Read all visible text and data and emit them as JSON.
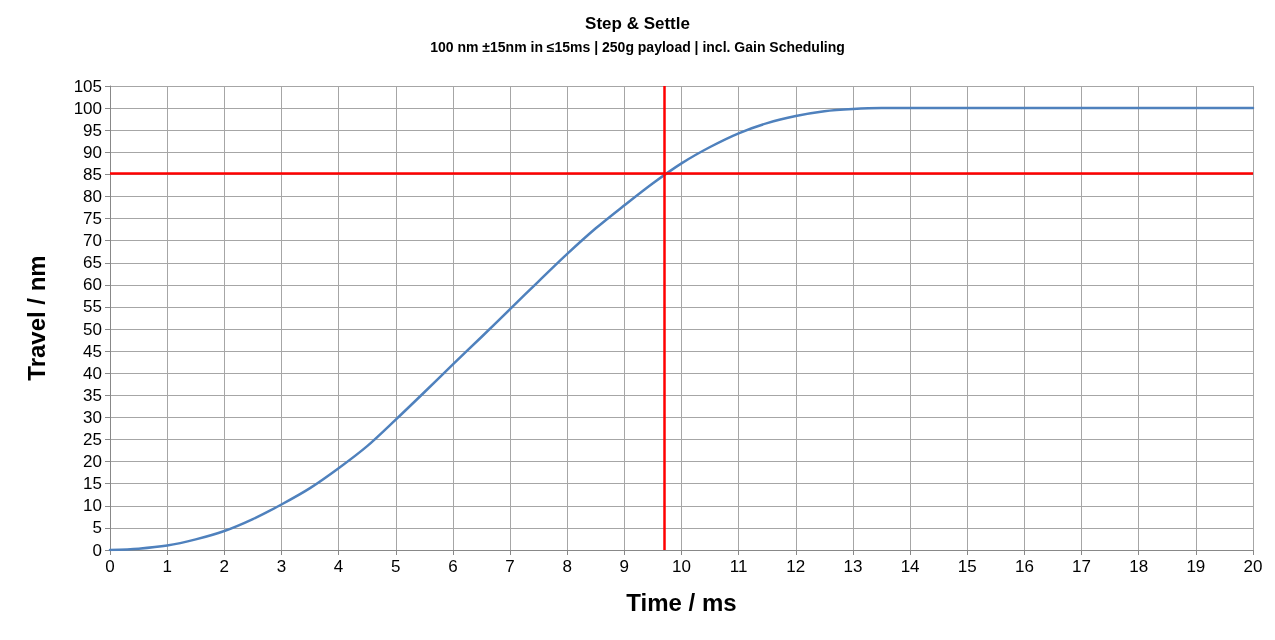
{
  "chart_data": {
    "type": "line",
    "title": "Step & Settle",
    "subtitle": "100 nm ±15nm in ≤15ms | 250g payload | incl. Gain Scheduling",
    "xlabel": "Time / ms",
    "ylabel": "Travel / nm",
    "series": [
      {
        "color": "#4f81bd",
        "x": [
          0,
          0.5,
          1,
          1.5,
          2,
          2.5,
          3,
          3.5,
          4,
          4.5,
          5,
          5.5,
          6,
          6.5,
          7,
          7.5,
          8,
          8.5,
          9,
          9.5,
          10,
          10.5,
          11,
          11.5,
          12,
          12.5,
          13,
          13.5,
          14,
          15,
          16,
          17,
          18,
          19,
          20
        ],
        "values": [
          0,
          0.3,
          1,
          2.4,
          4.3,
          7,
          10.3,
          14,
          18.5,
          23.5,
          29.5,
          35.7,
          42,
          48.2,
          54.5,
          60.8,
          67,
          72.8,
          78,
          83,
          87.5,
          91.2,
          94.3,
          96.6,
          98.2,
          99.3,
          99.8,
          100,
          100,
          100,
          100,
          100,
          100,
          100,
          100
        ]
      }
    ],
    "xlim": [
      0,
      20
    ],
    "xticks": [
      0,
      1,
      2,
      3,
      4,
      5,
      6,
      7,
      8,
      9,
      10,
      11,
      12,
      13,
      14,
      15,
      16,
      17,
      18,
      19,
      20
    ],
    "ylim": [
      0,
      105
    ],
    "yticks": [
      0,
      5,
      10,
      15,
      20,
      25,
      30,
      35,
      40,
      45,
      50,
      55,
      60,
      65,
      70,
      75,
      80,
      85,
      90,
      95,
      100,
      105
    ],
    "ref_lines": [
      {
        "axis": "x",
        "value": 9.7,
        "color": "#ff0000"
      },
      {
        "axis": "y",
        "value": 85.3,
        "color": "#ff0000"
      }
    ],
    "grid": true,
    "marker": "none",
    "line_style": "solid"
  }
}
